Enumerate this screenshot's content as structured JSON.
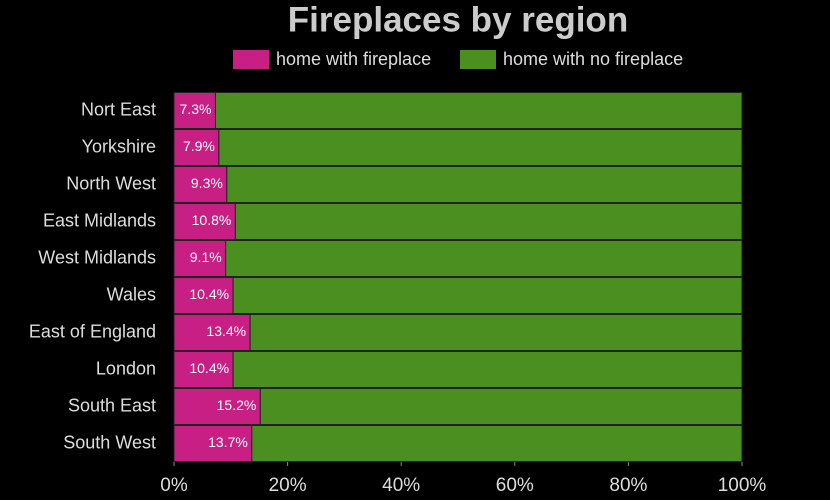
{
  "chart_data": {
    "type": "stacked-bar-horizontal",
    "title": "Fireplaces by region",
    "categories": [
      "Nort East",
      "Yorkshire",
      "North West",
      "East Midlands",
      "West Midlands",
      "Wales",
      "East of England",
      "London",
      "South East",
      "South West"
    ],
    "series": [
      {
        "name": "home with fireplace",
        "color": "#c71f84",
        "values": [
          7.3,
          7.9,
          9.3,
          10.8,
          9.1,
          10.4,
          13.4,
          10.4,
          15.2,
          13.7
        ],
        "value_labels": [
          "7.3%",
          "7.9%",
          "9.3%",
          "10.8%",
          "9.1%",
          "10.4%",
          "13.4%",
          "10.4%",
          "15.2%",
          "13.7%"
        ]
      },
      {
        "name": "home with no fireplace",
        "color": "#4a8f1f",
        "values": [
          92.7,
          92.1,
          90.7,
          89.2,
          90.9,
          89.6,
          86.6,
          89.6,
          84.8,
          86.3
        ]
      }
    ],
    "xlim": [
      0,
      100
    ],
    "xticks": [
      {
        "value": 0,
        "label": "0%"
      },
      {
        "value": 20,
        "label": "20%"
      },
      {
        "value": 40,
        "label": "40%"
      },
      {
        "value": 60,
        "label": "60%"
      },
      {
        "value": 80,
        "label": "80%"
      },
      {
        "value": 100,
        "label": "100%"
      }
    ]
  }
}
